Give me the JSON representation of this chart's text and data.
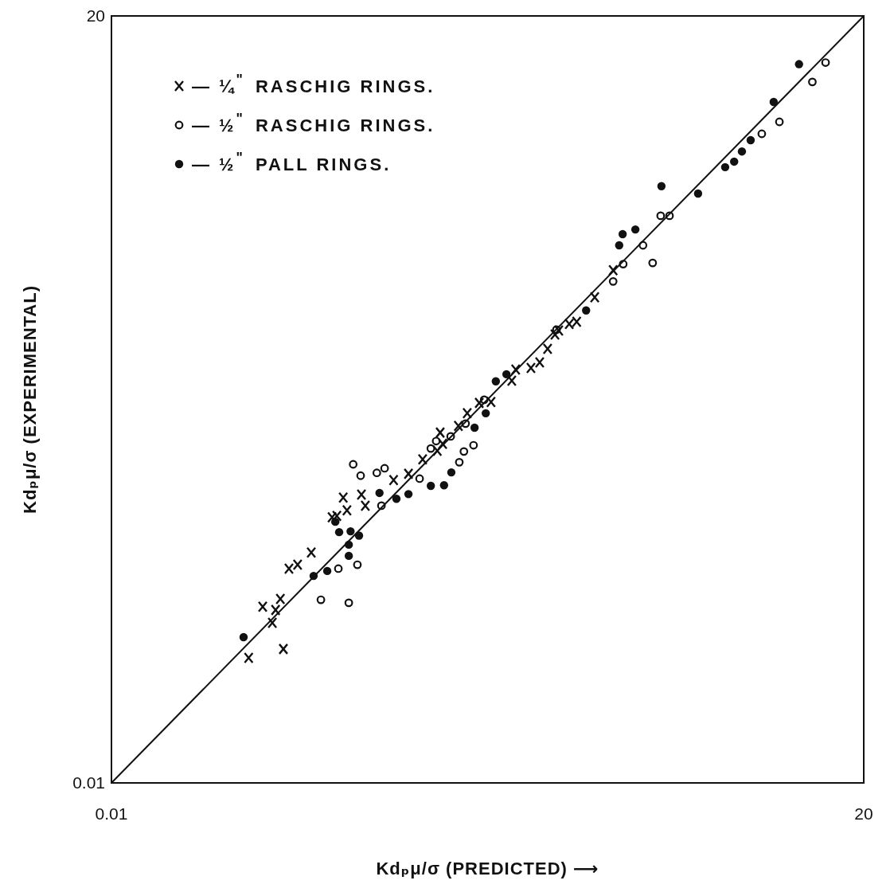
{
  "chart_data": {
    "type": "scatter",
    "xlabel": "Kdₚμ/σ  (PREDICTED) ⟶",
    "ylabel": "Kdₚμ/σ  (EXPERIMENTAL)",
    "log": "xy",
    "xlim": [
      0.01,
      20
    ],
    "ylim": [
      0.01,
      20
    ],
    "xticks": [
      0.01,
      20
    ],
    "yticks": [
      0.01,
      20
    ],
    "legend": "top left",
    "series": [
      {
        "name": "— ¼$^{\"}$ RASCHIG RINGS.",
        "color": "#111111",
        "marker": "cross",
        "x": [
          0.04,
          0.0461,
          0.0508,
          0.0525,
          0.0551,
          0.0568,
          0.0601,
          0.0656,
          0.0753,
          0.0929,
          0.0975,
          0.104,
          0.108,
          0.125,
          0.13,
          0.173,
          0.201,
          0.232,
          0.269,
          0.277,
          0.284,
          0.333,
          0.364,
          0.411,
          0.463,
          0.571,
          0.594,
          0.693,
          0.757,
          0.82,
          0.883,
          0.918,
          1.02,
          1.1,
          1.32,
          1.59
        ],
        "values": [
          0.0345,
          0.0573,
          0.0489,
          0.0555,
          0.0619,
          0.0377,
          0.0836,
          0.0869,
          0.098,
          0.139,
          0.141,
          0.169,
          0.149,
          0.174,
          0.156,
          0.201,
          0.214,
          0.247,
          0.269,
          0.322,
          0.288,
          0.344,
          0.39,
          0.432,
          0.436,
          0.538,
          0.601,
          0.611,
          0.646,
          0.738,
          0.851,
          0.885,
          0.944,
          0.966,
          1.23,
          1.61
        ]
      },
      {
        "name": "— ½$^{\"}$ RASCHIG RINGS.",
        "color": "#111111",
        "marker": "circle-open",
        "x": [
          0.083,
          0.099,
          0.11,
          0.115,
          0.12,
          0.124,
          0.146,
          0.158,
          0.153,
          0.225,
          0.252,
          0.266,
          0.308,
          0.336,
          0.352,
          0.358,
          0.388,
          0.432,
          0.897,
          1.59,
          1.76,
          2.15,
          2.37,
          2.57,
          2.81,
          7.14,
          8.53,
          11.9,
          13.6
        ],
        "values": [
          0.0614,
          0.0836,
          0.0596,
          0.235,
          0.0869,
          0.21,
          0.216,
          0.226,
          0.156,
          0.204,
          0.275,
          0.296,
          0.31,
          0.24,
          0.267,
          0.352,
          0.284,
          0.446,
          0.893,
          1.44,
          1.71,
          2.06,
          1.73,
          2.76,
          2.76,
          6.22,
          7.0,
          10.4,
          12.6
        ]
      },
      {
        "name": "— ½$^{\"}$ PALL RINGS.",
        "color": "#111111",
        "marker": "circle",
        "x": [
          0.038,
          0.0771,
          0.0885,
          0.096,
          0.0998,
          0.11,
          0.11,
          0.112,
          0.122,
          0.15,
          0.178,
          0.201,
          0.252,
          0.288,
          0.31,
          0.392,
          0.439,
          0.486,
          0.541,
          1.21,
          1.69,
          1.75,
          1.99,
          2.59,
          3.75,
          4.93,
          5.4,
          5.84,
          6.38,
          8.05,
          10.4
        ],
        "values": [
          0.0424,
          0.0778,
          0.0817,
          0.133,
          0.12,
          0.0949,
          0.106,
          0.121,
          0.116,
          0.177,
          0.167,
          0.175,
          0.19,
          0.191,
          0.217,
          0.338,
          0.39,
          0.535,
          0.574,
          1.08,
          2.06,
          2.3,
          2.41,
          3.7,
          3.44,
          4.47,
          4.72,
          5.22,
          5.84,
          8.53,
          12.4
        ]
      },
      {
        "type": "line",
        "color": "#111111",
        "marker": "none",
        "x": [
          0.01,
          20
        ],
        "values": [
          0.01,
          20
        ]
      }
    ]
  }
}
